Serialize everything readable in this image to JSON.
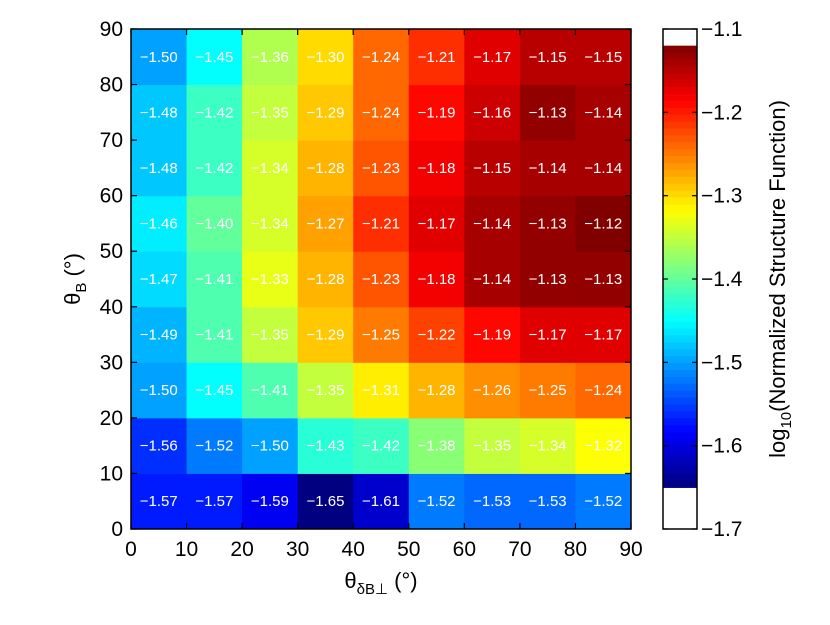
{
  "chart_data": {
    "type": "heatmap",
    "title": "",
    "xlabel": {
      "symbol": "θ",
      "sub": "δB⊥",
      "unit": " (°)"
    },
    "ylabel": {
      "symbol": "θ",
      "sub": "B",
      "unit": " (°)"
    },
    "colorbar_label": {
      "prefix": "log",
      "sub": "10",
      "suffix": "(Normalized Structure Function)"
    },
    "xlim": [
      0,
      90
    ],
    "ylim": [
      0,
      90
    ],
    "x_ticks": [
      "0",
      "10",
      "20",
      "30",
      "40",
      "50",
      "60",
      "70",
      "80",
      "90"
    ],
    "y_ticks": [
      "0",
      "10",
      "20",
      "30",
      "40",
      "50",
      "60",
      "70",
      "80",
      "90"
    ],
    "colorbar_range": [
      -1.7,
      -1.1
    ],
    "colormap_range": [
      -1.65,
      -1.12
    ],
    "colorbar_ticks": [
      "−1.1",
      "−1.2",
      "−1.3",
      "−1.4",
      "−1.5",
      "−1.6",
      "−1.7"
    ],
    "colormap": "jet",
    "x_bins": [
      [
        0,
        10
      ],
      [
        10,
        20
      ],
      [
        20,
        30
      ],
      [
        30,
        40
      ],
      [
        40,
        50
      ],
      [
        50,
        60
      ],
      [
        60,
        70
      ],
      [
        70,
        80
      ],
      [
        80,
        90
      ]
    ],
    "y_bins": [
      [
        0,
        10
      ],
      [
        10,
        20
      ],
      [
        20,
        30
      ],
      [
        30,
        40
      ],
      [
        40,
        50
      ],
      [
        50,
        60
      ],
      [
        60,
        70
      ],
      [
        70,
        80
      ],
      [
        80,
        90
      ]
    ],
    "values": [
      [
        -1.57,
        -1.57,
        -1.59,
        -1.65,
        -1.61,
        -1.52,
        -1.53,
        -1.53,
        -1.52
      ],
      [
        -1.56,
        -1.52,
        -1.5,
        -1.43,
        -1.42,
        -1.38,
        -1.35,
        -1.34,
        -1.32
      ],
      [
        -1.5,
        -1.45,
        -1.41,
        -1.35,
        -1.31,
        -1.28,
        -1.26,
        -1.25,
        -1.24
      ],
      [
        -1.49,
        -1.41,
        -1.35,
        -1.29,
        -1.25,
        -1.22,
        -1.19,
        -1.17,
        -1.17
      ],
      [
        -1.47,
        -1.41,
        -1.33,
        -1.28,
        -1.23,
        -1.18,
        -1.14,
        -1.13,
        -1.13
      ],
      [
        -1.46,
        -1.4,
        -1.34,
        -1.27,
        -1.21,
        -1.17,
        -1.14,
        -1.13,
        -1.12
      ],
      [
        -1.48,
        -1.42,
        -1.34,
        -1.28,
        -1.23,
        -1.18,
        -1.15,
        -1.14,
        -1.14
      ],
      [
        -1.48,
        -1.42,
        -1.35,
        -1.29,
        -1.24,
        -1.19,
        -1.16,
        -1.13,
        -1.14
      ],
      [
        -1.5,
        -1.45,
        -1.36,
        -1.3,
        -1.24,
        -1.21,
        -1.17,
        -1.15,
        -1.15
      ]
    ],
    "labels": [
      [
        "−1.57",
        "−1.57",
        "−1.59",
        "−1.65",
        "−1.61",
        "−1.52",
        "−1.53",
        "−1.53",
        "−1.52"
      ],
      [
        "−1.56",
        "−1.52",
        "−1.50",
        "−1.43",
        "−1.42",
        "−1.38",
        "−1.35",
        "−1.34",
        "−1.32"
      ],
      [
        "−1.50",
        "−1.45",
        "−1.41",
        "−1.35",
        "−1.31",
        "−1.28",
        "−1.26",
        "−1.25",
        "−1.24"
      ],
      [
        "−1.49",
        "−1.41",
        "−1.35",
        "−1.29",
        "−1.25",
        "−1.22",
        "−1.19",
        "−1.17",
        "−1.17"
      ],
      [
        "−1.47",
        "−1.41",
        "−1.33",
        "−1.28",
        "−1.23",
        "−1.18",
        "−1.14",
        "−1.13",
        "−1.13"
      ],
      [
        "−1.46",
        "−1.40",
        "−1.34",
        "−1.27",
        "−1.21",
        "−1.17",
        "−1.14",
        "−1.13",
        "−1.12"
      ],
      [
        "−1.48",
        "−1.42",
        "−1.34",
        "−1.28",
        "−1.23",
        "−1.18",
        "−1.15",
        "−1.14",
        "−1.14"
      ],
      [
        "−1.48",
        "−1.42",
        "−1.35",
        "−1.29",
        "−1.24",
        "−1.19",
        "−1.16",
        "−1.13",
        "−1.14"
      ],
      [
        "−1.50",
        "−1.45",
        "−1.36",
        "−1.30",
        "−1.24",
        "−1.21",
        "−1.17",
        "−1.15",
        "−1.15"
      ]
    ]
  }
}
